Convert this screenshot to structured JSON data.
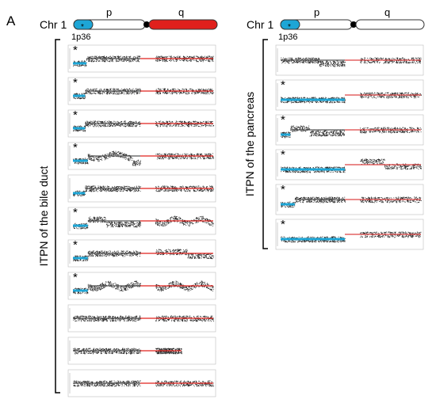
{
  "figure": {
    "panel_label": "A",
    "colors": {
      "p_arm_segment": "#1ea6d6",
      "q_arm_highlight": "#e0201c",
      "dots": "#222222",
      "centromere": "#000000"
    },
    "left": {
      "chr_label": "Chr 1",
      "p_label": "p",
      "q_label": "q",
      "band_label": "1p36",
      "group_label": "ITPN of the  bile duct",
      "q_arm_color": "red",
      "rows": [
        {
          "star": "*",
          "p_seg": 0.2,
          "p_rest": "normal",
          "q": "normal"
        },
        {
          "star": "*",
          "p_seg": 0.18,
          "p_rest": "normal",
          "q": "normal"
        },
        {
          "star": "*",
          "p_seg": 0.18,
          "p_rest": "normal",
          "q": "normal"
        },
        {
          "star": "*",
          "p_seg": 0.22,
          "p_rest": "dip",
          "q": "normal"
        },
        {
          "star": "",
          "p_seg": 0.18,
          "p_rest": "normal",
          "q": "normal"
        },
        {
          "star": "*",
          "p_seg": 0.22,
          "p_rest": "step",
          "q": "wavy"
        },
        {
          "star": "*",
          "p_seg": 0.22,
          "p_rest": "normal",
          "q": "split"
        },
        {
          "star": "*",
          "p_seg": 0.22,
          "p_rest": "wavy",
          "q": "wavy"
        },
        {
          "star": "",
          "p_seg": 0.0,
          "p_rest": "normal",
          "q": "normal"
        },
        {
          "star": "",
          "p_seg": 0.0,
          "p_rest": "normal",
          "q": "short"
        },
        {
          "star": "",
          "p_seg": 0.0,
          "p_rest": "normal",
          "q": "normal"
        }
      ]
    },
    "right": {
      "chr_label": "Chr 1",
      "p_label": "p",
      "q_label": "q",
      "band_label": "1p36",
      "group_label": "ITPN of the pancreas",
      "rows": [
        {
          "star": "",
          "p_seg": 0.0,
          "p_rest": "split",
          "q": "normal"
        },
        {
          "star": "*",
          "p_seg": 1.0,
          "p_rest": "normal",
          "q": "normal"
        },
        {
          "star": "*",
          "p_seg": 0.15,
          "p_rest": "step",
          "q": "normal"
        },
        {
          "star": "*",
          "p_seg": 1.0,
          "p_rest": "normal",
          "q": "bump"
        },
        {
          "star": "*",
          "p_seg": 0.22,
          "p_rest": "normal",
          "q": "normal"
        },
        {
          "star": "*",
          "p_seg": 1.0,
          "p_rest": "normal",
          "q": "normal"
        }
      ]
    }
  }
}
